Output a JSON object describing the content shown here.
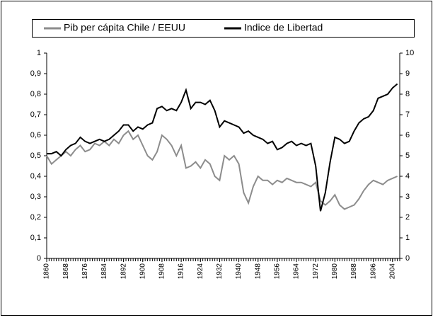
{
  "chart_data": {
    "type": "line",
    "x": [
      1860,
      1862,
      1864,
      1866,
      1868,
      1870,
      1872,
      1874,
      1876,
      1878,
      1880,
      1882,
      1884,
      1886,
      1888,
      1890,
      1892,
      1894,
      1896,
      1898,
      1900,
      1902,
      1904,
      1906,
      1908,
      1910,
      1912,
      1914,
      1916,
      1918,
      1920,
      1922,
      1924,
      1926,
      1928,
      1930,
      1932,
      1934,
      1936,
      1938,
      1940,
      1942,
      1944,
      1946,
      1948,
      1950,
      1952,
      1954,
      1956,
      1958,
      1960,
      1962,
      1964,
      1966,
      1968,
      1970,
      1972,
      1974,
      1976,
      1978,
      1980,
      1982,
      1984,
      1986,
      1988,
      1990,
      1992,
      1994,
      1996,
      1998,
      2000,
      2002,
      2004,
      2006
    ],
    "series": [
      {
        "name": "Pib per cápita Chile / EEUU",
        "color": "#8c8c8c",
        "axis": "y",
        "values": [
          0.5,
          0.46,
          0.48,
          0.5,
          0.52,
          0.5,
          0.53,
          0.55,
          0.52,
          0.53,
          0.56,
          0.55,
          0.57,
          0.55,
          0.58,
          0.56,
          0.6,
          0.62,
          0.58,
          0.6,
          0.55,
          0.5,
          0.48,
          0.52,
          0.6,
          0.58,
          0.55,
          0.5,
          0.55,
          0.44,
          0.45,
          0.47,
          0.44,
          0.48,
          0.46,
          0.4,
          0.38,
          0.5,
          0.48,
          0.5,
          0.46,
          0.32,
          0.27,
          0.35,
          0.4,
          0.38,
          0.38,
          0.36,
          0.38,
          0.37,
          0.39,
          0.38,
          0.37,
          0.37,
          0.36,
          0.35,
          0.37,
          0.28,
          0.26,
          0.28,
          0.31,
          0.26,
          0.24,
          0.25,
          0.26,
          0.29,
          0.33,
          0.36,
          0.38,
          0.37,
          0.36,
          0.38,
          0.39,
          0.4
        ]
      },
      {
        "name": "Indice de Libertad",
        "color": "#000000",
        "axis": "y2",
        "values": [
          5.1,
          5.1,
          5.2,
          5.0,
          5.3,
          5.5,
          5.6,
          5.9,
          5.7,
          5.6,
          5.7,
          5.8,
          5.7,
          5.8,
          6.0,
          6.2,
          6.5,
          6.5,
          6.2,
          6.4,
          6.3,
          6.5,
          6.6,
          7.3,
          7.4,
          7.2,
          7.3,
          7.2,
          7.6,
          8.2,
          7.3,
          7.6,
          7.6,
          7.5,
          7.7,
          7.2,
          6.4,
          6.7,
          6.6,
          6.5,
          6.4,
          6.1,
          6.2,
          6.0,
          5.9,
          5.8,
          5.6,
          5.7,
          5.3,
          5.4,
          5.6,
          5.7,
          5.5,
          5.6,
          5.5,
          5.6,
          4.5,
          2.3,
          3.2,
          4.7,
          5.9,
          5.8,
          5.6,
          5.7,
          6.2,
          6.6,
          6.8,
          6.9,
          7.2,
          7.8,
          7.9,
          8.0,
          8.3,
          8.5
        ]
      }
    ],
    "xlim": [
      1860,
      2007
    ],
    "xticks": [
      1860,
      1868,
      1876,
      1884,
      1892,
      1900,
      1908,
      1916,
      1924,
      1932,
      1940,
      1948,
      1956,
      1964,
      1972,
      1980,
      1988,
      1996,
      2004
    ],
    "ylim": [
      0,
      1
    ],
    "yticks": [
      0,
      {
        "value": 0.1,
        "label": "0,1"
      },
      {
        "value": 0.2,
        "label": "0,2"
      },
      {
        "value": 0.3,
        "label": "0,3"
      },
      {
        "value": 0.4,
        "label": "0,4"
      },
      {
        "value": 0.5,
        "label": "0,5"
      },
      {
        "value": 0.6,
        "label": "0,6"
      },
      {
        "value": 0.7,
        "label": "0,7"
      },
      {
        "value": 0.8,
        "label": "0,8"
      },
      {
        "value": 0.9,
        "label": "0,9"
      },
      1
    ],
    "y2lim": [
      0,
      10
    ],
    "y2ticks": [
      0,
      1,
      2,
      3,
      4,
      5,
      6,
      7,
      8,
      9,
      10
    ],
    "legend": "top"
  }
}
